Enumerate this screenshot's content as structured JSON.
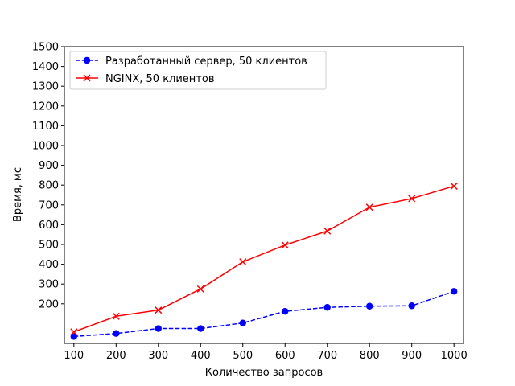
{
  "chart_data": {
    "type": "line",
    "xlabel": "Количество запросов",
    "ylabel": "Время, мс",
    "xlim": [
      77.5,
      1022.5
    ],
    "ylim": [
      0,
      1500
    ],
    "xticks": [
      100,
      200,
      300,
      400,
      500,
      600,
      700,
      800,
      900,
      1000
    ],
    "yticks": [
      200,
      300,
      400,
      500,
      600,
      700,
      800,
      900,
      1000,
      1100,
      1200,
      1300,
      1400,
      1500
    ],
    "grid": false,
    "legend_position": "top-left",
    "x": [
      100,
      200,
      300,
      400,
      500,
      600,
      700,
      800,
      900,
      1000
    ],
    "series": [
      {
        "name": "Разработанный сервер, 50 клиентов",
        "color": "#0000ff",
        "line_style": "dashed",
        "marker": "circle",
        "values": [
          35,
          50,
          75,
          75,
          103,
          162,
          182,
          188,
          190,
          263
        ]
      },
      {
        "name": "NGINX, 50 клиентов",
        "color": "#ff0000",
        "line_style": "solid",
        "marker": "x",
        "values": [
          58,
          137,
          168,
          275,
          412,
          497,
          568,
          688,
          732,
          795
        ]
      }
    ]
  }
}
